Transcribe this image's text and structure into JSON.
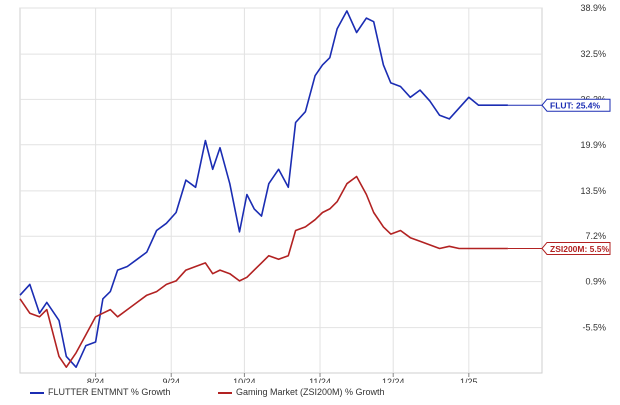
{
  "chart_data": {
    "type": "line",
    "title": "",
    "xlabel": "",
    "ylabel": "",
    "x_ticks": [
      "8/24",
      "9/24",
      "10/24",
      "11/24",
      "12/24",
      "1/25"
    ],
    "y_ticks": [
      "38.9%",
      "32.5%",
      "26.2%",
      "19.9%",
      "13.5%",
      "7.2%",
      "0.9%",
      "-5.5%"
    ],
    "y_tick_values": [
      38.9,
      32.5,
      26.2,
      19.9,
      13.5,
      7.2,
      0.9,
      -5.5
    ],
    "ylim": [
      -11.8,
      38.9
    ],
    "grid": true,
    "legend": "bottom",
    "series": [
      {
        "name": "FLUTTER ENTMNT % Growth",
        "color": "#1b2db3",
        "end_label": "FLUT: 25.4%",
        "x": [
          "7/1",
          "7/5",
          "7/9",
          "7/12",
          "7/17",
          "7/20",
          "7/24",
          "7/28",
          "8/1",
          "8/4",
          "8/7",
          "8/10",
          "8/14",
          "8/18",
          "8/22",
          "8/26",
          "8/30",
          "9/3",
          "9/7",
          "9/11",
          "9/15",
          "9/18",
          "9/21",
          "9/25",
          "9/29",
          "10/2",
          "10/5",
          "10/8",
          "10/11",
          "10/15",
          "10/19",
          "10/22",
          "10/26",
          "10/30",
          "11/2",
          "11/5",
          "11/8",
          "11/12",
          "11/16",
          "11/20",
          "11/23",
          "11/27",
          "11/30",
          "12/4",
          "12/8",
          "12/12",
          "12/16",
          "12/20",
          "12/24",
          "12/28",
          "1/1",
          "1/5",
          "1/9",
          "1/13",
          "1/17"
        ],
        "values": [
          -1.0,
          0.5,
          -3.5,
          -2.0,
          -4.5,
          -9.5,
          -11.0,
          -8.0,
          -7.5,
          -1.5,
          -0.5,
          2.5,
          3.0,
          4.0,
          5.0,
          8.0,
          9.0,
          10.5,
          15.0,
          14.0,
          20.5,
          16.5,
          19.5,
          14.5,
          7.8,
          13.0,
          11.0,
          10.0,
          14.5,
          16.5,
          14.0,
          23.0,
          24.5,
          29.5,
          31.0,
          32.0,
          36.0,
          38.5,
          35.5,
          37.5,
          37.0,
          31.0,
          28.5,
          28.0,
          26.5,
          27.5,
          26.0,
          24.0,
          23.5,
          25.0,
          26.5,
          25.4,
          25.4,
          25.4,
          25.4
        ]
      },
      {
        "name": "Gaming Market (ZSI200M) % Growth",
        "color": "#b22222",
        "end_label": "ZSI200M: 5.5%",
        "x": [
          "7/1",
          "7/5",
          "7/9",
          "7/12",
          "7/17",
          "7/20",
          "7/24",
          "7/28",
          "8/1",
          "8/4",
          "8/7",
          "8/10",
          "8/14",
          "8/18",
          "8/22",
          "8/26",
          "8/30",
          "9/3",
          "9/7",
          "9/11",
          "9/15",
          "9/18",
          "9/21",
          "9/25",
          "9/29",
          "10/2",
          "10/5",
          "10/8",
          "10/11",
          "10/15",
          "10/19",
          "10/22",
          "10/26",
          "10/30",
          "11/2",
          "11/5",
          "11/8",
          "11/12",
          "11/16",
          "11/20",
          "11/23",
          "11/27",
          "11/30",
          "12/4",
          "12/8",
          "12/12",
          "12/16",
          "12/20",
          "12/24",
          "12/28",
          "1/1",
          "1/5",
          "1/9",
          "1/13",
          "1/17"
        ],
        "values": [
          -1.5,
          -3.5,
          -4.0,
          -3.0,
          -9.5,
          -11.0,
          -9.0,
          -6.5,
          -4.0,
          -3.5,
          -3.0,
          -4.0,
          -3.0,
          -2.0,
          -1.0,
          -0.5,
          0.5,
          1.0,
          2.5,
          3.0,
          3.5,
          2.0,
          2.5,
          2.0,
          1.0,
          1.5,
          2.5,
          3.5,
          4.5,
          4.0,
          4.5,
          8.0,
          8.5,
          9.5,
          10.5,
          11.0,
          12.0,
          14.5,
          15.5,
          13.0,
          10.5,
          8.5,
          7.5,
          8.0,
          7.0,
          6.5,
          6.0,
          5.5,
          5.8,
          5.5,
          5.5,
          5.5,
          5.5,
          5.5,
          5.5
        ]
      }
    ]
  }
}
